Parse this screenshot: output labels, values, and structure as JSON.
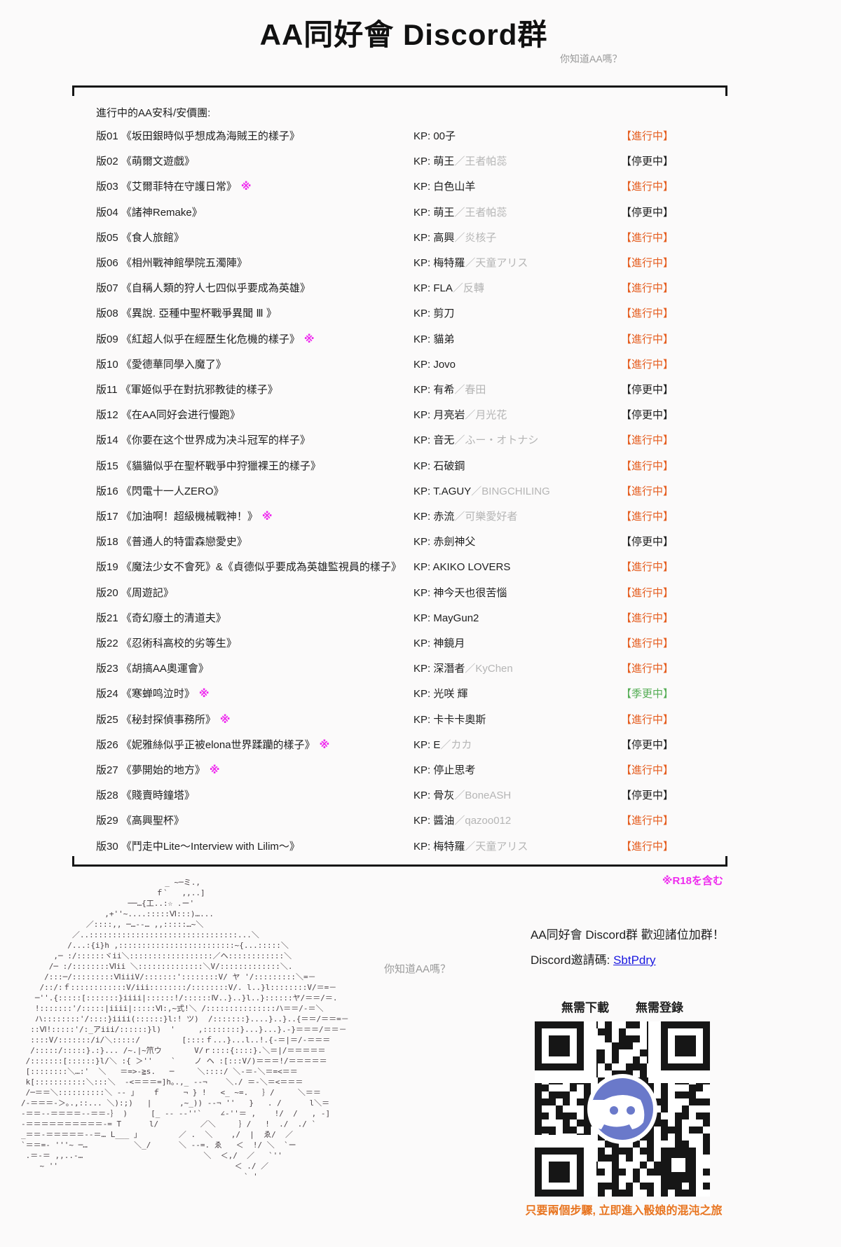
{
  "page": {
    "title": "AA同好會 Discord群",
    "subtitle": "你知道AA嗎？",
    "art_caption": "你知道AA嗎？"
  },
  "list": {
    "section_label": "進行中的AA安科/安價團:",
    "kp_prefix": "KP: ",
    "r18_marker": "※",
    "r18_note": "※R18を含む"
  },
  "threads": [
    {
      "no": "版01",
      "title": "《坂田銀時似乎想成為海賊王的樣子》",
      "r18": false,
      "kp": "00子",
      "kp_alt": "",
      "status": "【進行中】",
      "state": "ongoing"
    },
    {
      "no": "版02",
      "title": "《萌爾文遊戲》",
      "r18": false,
      "kp": "萌王",
      "kp_alt": "／王者帕蕊",
      "status": "【停更中】",
      "state": "paused"
    },
    {
      "no": "版03",
      "title": "《艾爾菲特在守護日常》",
      "r18": true,
      "kp": "白色山羊",
      "kp_alt": "",
      "status": "【進行中】",
      "state": "ongoing"
    },
    {
      "no": "版04",
      "title": "《諸神Remake》",
      "r18": false,
      "kp": "萌王",
      "kp_alt": "／王者帕蕊",
      "status": "【停更中】",
      "state": "paused"
    },
    {
      "no": "版05",
      "title": "《食人旅館》",
      "r18": false,
      "kp": "高興",
      "kp_alt": "／炎核子",
      "status": "【進行中】",
      "state": "ongoing"
    },
    {
      "no": "版06",
      "title": "《相州戰神館學院五濁陣》",
      "r18": false,
      "kp": "梅特羅",
      "kp_alt": "／天童アリス",
      "status": "【進行中】",
      "state": "ongoing"
    },
    {
      "no": "版07",
      "title": "《自稱人類的狩人七四似乎要成為英雄》",
      "r18": false,
      "kp": "FLA",
      "kp_alt": "／反轉",
      "status": "【進行中】",
      "state": "ongoing"
    },
    {
      "no": "版08",
      "title": "《異說. 亞種中聖杯戰爭異聞 Ⅲ 》",
      "r18": false,
      "kp": "剪刀",
      "kp_alt": "",
      "status": "【進行中】",
      "state": "ongoing"
    },
    {
      "no": "版09",
      "title": "《紅超人似乎在經歷生化危機的樣子》",
      "r18": true,
      "kp": "貓弟",
      "kp_alt": "",
      "status": "【進行中】",
      "state": "ongoing"
    },
    {
      "no": "版10",
      "title": "《愛德華同學入魔了》",
      "r18": false,
      "kp": "Jovo",
      "kp_alt": "",
      "status": "【進行中】",
      "state": "ongoing"
    },
    {
      "no": "版11",
      "title": "《軍姬似乎在對抗邪教徒的樣子》",
      "r18": false,
      "kp": "有希",
      "kp_alt": "／春田",
      "status": "【停更中】",
      "state": "paused"
    },
    {
      "no": "版12",
      "title": "《在AA同好会进行慢跑》",
      "r18": false,
      "kp": "月亮岩",
      "kp_alt": "／月光花",
      "status": "【停更中】",
      "state": "paused"
    },
    {
      "no": "版14",
      "title": "《你要在这个世界成为决斗冠军的样子》",
      "r18": false,
      "kp": "音无",
      "kp_alt": "／ふー・オトナシ",
      "status": "【進行中】",
      "state": "ongoing"
    },
    {
      "no": "版15",
      "title": "《貓貓似乎在聖杯戰爭中狩獵裸王的樣子》",
      "r18": false,
      "kp": "石破鋼",
      "kp_alt": "",
      "status": "【進行中】",
      "state": "ongoing"
    },
    {
      "no": "版16",
      "title": "《閃電十一人ZERO》",
      "r18": false,
      "kp": "T.AGUY",
      "kp_alt": "／BINGCHILING",
      "status": "【進行中】",
      "state": "ongoing"
    },
    {
      "no": "版17",
      "title": "《加油啊！超級機械戰神！》",
      "r18": true,
      "kp": "赤流",
      "kp_alt": "／可樂愛好者",
      "status": "【進行中】",
      "state": "ongoing"
    },
    {
      "no": "版18",
      "title": "《普通人的特雷森戀愛史》",
      "r18": false,
      "kp": "赤劍神父",
      "kp_alt": "",
      "status": "【停更中】",
      "state": "paused"
    },
    {
      "no": "版19",
      "title": "《魔法少女不會死》&《貞德似乎要成為英雄監視員的樣子》",
      "r18": false,
      "kp": "AKIKO LOVERS",
      "kp_alt": "",
      "status": "【進行中】",
      "state": "ongoing"
    },
    {
      "no": "版20",
      "title": "《周遊記》",
      "r18": false,
      "kp": "神今天也很苦惱",
      "kp_alt": "",
      "status": "【進行中】",
      "state": "ongoing"
    },
    {
      "no": "版21",
      "title": "《奇幻廢土的清道夫》",
      "r18": false,
      "kp": "MayGun2",
      "kp_alt": "",
      "status": "【進行中】",
      "state": "ongoing"
    },
    {
      "no": "版22",
      "title": "《忍術科高校的劣等生》",
      "r18": false,
      "kp": "神鏡月",
      "kp_alt": "",
      "status": "【進行中】",
      "state": "ongoing"
    },
    {
      "no": "版23",
      "title": "《胡搞AA奧運會》",
      "r18": false,
      "kp": "深潛者",
      "kp_alt": "／KyChen",
      "status": "【進行中】",
      "state": "ongoing"
    },
    {
      "no": "版24",
      "title": "《寒蝉鸣泣时》",
      "r18": true,
      "kp": "光咲 輝",
      "kp_alt": "",
      "status": "【季更中】",
      "state": "seasonal"
    },
    {
      "no": "版25",
      "title": "《秘封探偵事務所》",
      "r18": true,
      "kp": "卡卡卡奧斯",
      "kp_alt": "",
      "status": "【進行中】",
      "state": "ongoing"
    },
    {
      "no": "版26",
      "title": "《妮雅絲似乎正被elona世界蹂躪的樣子》",
      "r18": true,
      "kp": "E",
      "kp_alt": "／カカ",
      "status": "【停更中】",
      "state": "paused"
    },
    {
      "no": "版27",
      "title": "《夢開始的地方》",
      "r18": true,
      "kp": "停止思考",
      "kp_alt": "",
      "status": "【進行中】",
      "state": "ongoing"
    },
    {
      "no": "版28",
      "title": "《賤賣時鐘塔》",
      "r18": false,
      "kp": "骨灰",
      "kp_alt": "／BoneASH",
      "status": "【停更中】",
      "state": "paused"
    },
    {
      "no": "版29",
      "title": "《高興聖杯》",
      "r18": false,
      "kp": "醬油",
      "kp_alt": "／qazoo012",
      "status": "【進行中】",
      "state": "ongoing"
    },
    {
      "no": "版30",
      "title": "《鬥走中Lite～Interview with Lilim～》",
      "r18": false,
      "kp": "梅特羅",
      "kp_alt": "／天童アリス",
      "status": "【進行中】",
      "state": "ongoing"
    }
  ],
  "footer": {
    "welcome": "AA同好會 Discord群  歡迎諸位加群！",
    "invite_label": "Discord邀請碼: ",
    "invite_code": "SbtPdry",
    "no_download": "無需下載",
    "no_login": "無需登錄",
    "cta": "只要兩個步驟, 立即進入骰娘的混沌之旅"
  },
  "colors": {
    "status_ongoing": "#e55d1f",
    "status_paused": "#1e1e1e",
    "status_seasonal": "#55ad55",
    "r18_marker": "#ee2bee",
    "link": "#1a18e0",
    "cta_orange": "#e8741f",
    "discord_blurple": "#6a79ca"
  },
  "ascii_art": [
    "                               _ ~─ミ.,",
    "                             ｆ`   ,,..]",
    "                       ──…{工..:☆ .ー'",
    "                  ,+''~....:::::Ⅵ:::)…...",
    "              ／::::,, ─…--… ,,:::::…~＼",
    "           ／..::::::::::::::::::::::::::::::::...＼",
    "          /...:{i}h ,:::::::::::::::::::::::::~{...:::::＼",
    "       ,─ :/::::::ヾii＼::::::::::::::::::／ヘ::::::::::::＼",
    "      /─ :/::::::::Ⅵii ＼::::::::::::::＼V/:::::::::::::＼.",
    "     /:::─/:::::::::ⅥiiiV/:::::::'::::::::V/ ヤ '/:::::::::＼=－",
    "    /::/:ｆ::::::::::::V/iii::::::::/::::::::V/. l..}l::::::::V/＝=－",
    "   ─''.{:::::[:::::::}iiii|::::::!/::::::Ⅳ..}..}l..}::::::ヤ/＝＝/＝.",
    "   !:::::::'/:::::|iiii|:::::Ⅵ:,~式!＼ /:::::::::::::::ハ＝＝/-＝＼",
    "   ハ::::::::'/::::}iiii(::::::}l:! ツ)  /:::::::}....}..}..{＝＝/＝＝=－",
    "  ::Ⅵ!:::::'/:_アiii/::::::}l)  '     ,::::::::}...}...}.-}＝＝＝/＝＝－",
    "  ::::V/:::::::/i/＼:::::/         [::::ｆ...}...l..!.{-＝|＝/-＝＝＝",
    "  /:::::/:::::}.:}... /~.|~笊ウ       V/ｒ::::{::::}.＼＝|/＝＝＝＝＝",
    " /:::::::[::::::}l/＼ :{ ＞''    `    ノ ヘ :[:::V/)＝＝＝!/＝＝＝＝＝",
    " [::::::::＼…:'  ＼   ＝=>-≧s.   ─     ＼::::/ ＼-＝-＼＝=<＝＝",
    " k[:::::::::::＼:::＼  -<＝＝＝=]h｡.,_ --¬    ＼./ ＝-＼＝<＝＝＝",
    " /─＝＝＼::::::::::＼ -- 」   ｆ     ¬ } !   <_ ~=.   ｝/     ＼＝＝",
    "/-＝＝＝-＞｡.,::... ＼):;)   |      ,~_)) --¬ ''   }   . /      l＼＝",
    "-＝＝--＝＝＝＝--＝＝-｝ )     [_ -- --''`    ∠-''＝ ,    !/  /   , -]",
    "-＝＝＝＝＝＝＝＝＝＝-= T      l/         ／＼     ｝/   !  ./  ./ `",
    "_＝＝-＝＝＝＝＝--＝… L___ 」        ／ .  ＼    ,/  |  ゑ/  ／",
    "`＝＝=- '''~ ─…          ＼_/      ＼ --=. ゑ   ＜  !/ ＼  `ー",
    " .＝-＝ ,,..-…                          ＼  ＜,/  ／   `''",
    "    ~ ''                                      ＜ ./ ／",
    "                                                ` '"
  ]
}
